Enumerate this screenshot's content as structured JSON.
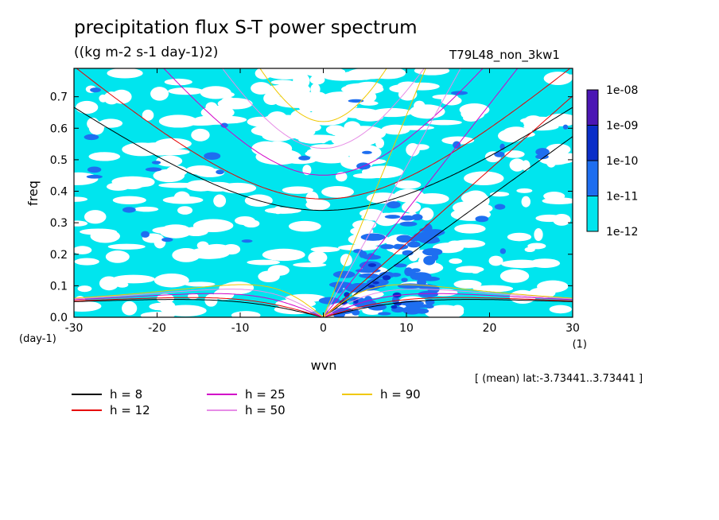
{
  "header": {
    "title": "precipitation flux S-T power spectrum",
    "units": "((kg m-2 s-1 day-1)2)",
    "experiment": "T79L48_non_3kw1",
    "mean_label": "[ (mean) lat:-3.73441..3.73441 ]"
  },
  "chart_data": {
    "type": "heatmap",
    "title": "precipitation flux S-T power spectrum",
    "xlabel": "wvn",
    "ylabel": "freq",
    "x_unit": "(1)",
    "y_unit": "(day-1)",
    "xlim": [
      -30,
      30
    ],
    "ylim": [
      0,
      0.79
    ],
    "xticks": [
      -30,
      -20,
      -10,
      0,
      10,
      20,
      30
    ],
    "xtick_labels": [
      "-30",
      "-20",
      "-10",
      "0",
      "10",
      "20",
      "30"
    ],
    "yticks": [
      0,
      0.1,
      0.2,
      0.3,
      0.4,
      0.5,
      0.6,
      0.7
    ],
    "ytick_labels": [
      "0.0",
      "0.1",
      "0.2",
      "0.3",
      "0.4",
      "0.5",
      "0.6",
      "0.7"
    ],
    "colorbar": {
      "levels": [
        "1e-12",
        "1e-11",
        "1e-10",
        "1e-09",
        "1e-08"
      ],
      "colors": [
        "#00e5ee",
        "#1e6ef0",
        "#0a2ec8",
        "#4b16b4"
      ]
    },
    "dispersion_curves": [
      {
        "name": "h = 8",
        "h": 8,
        "color": "#000000"
      },
      {
        "name": "h = 12",
        "h": 12,
        "color": "#e60000"
      },
      {
        "name": "h = 25",
        "h": 25,
        "color": "#d200c8"
      },
      {
        "name": "h = 50",
        "h": 50,
        "color": "#e68ce6"
      },
      {
        "name": "h = 90",
        "h": 90,
        "color": "#f0c800"
      }
    ]
  }
}
